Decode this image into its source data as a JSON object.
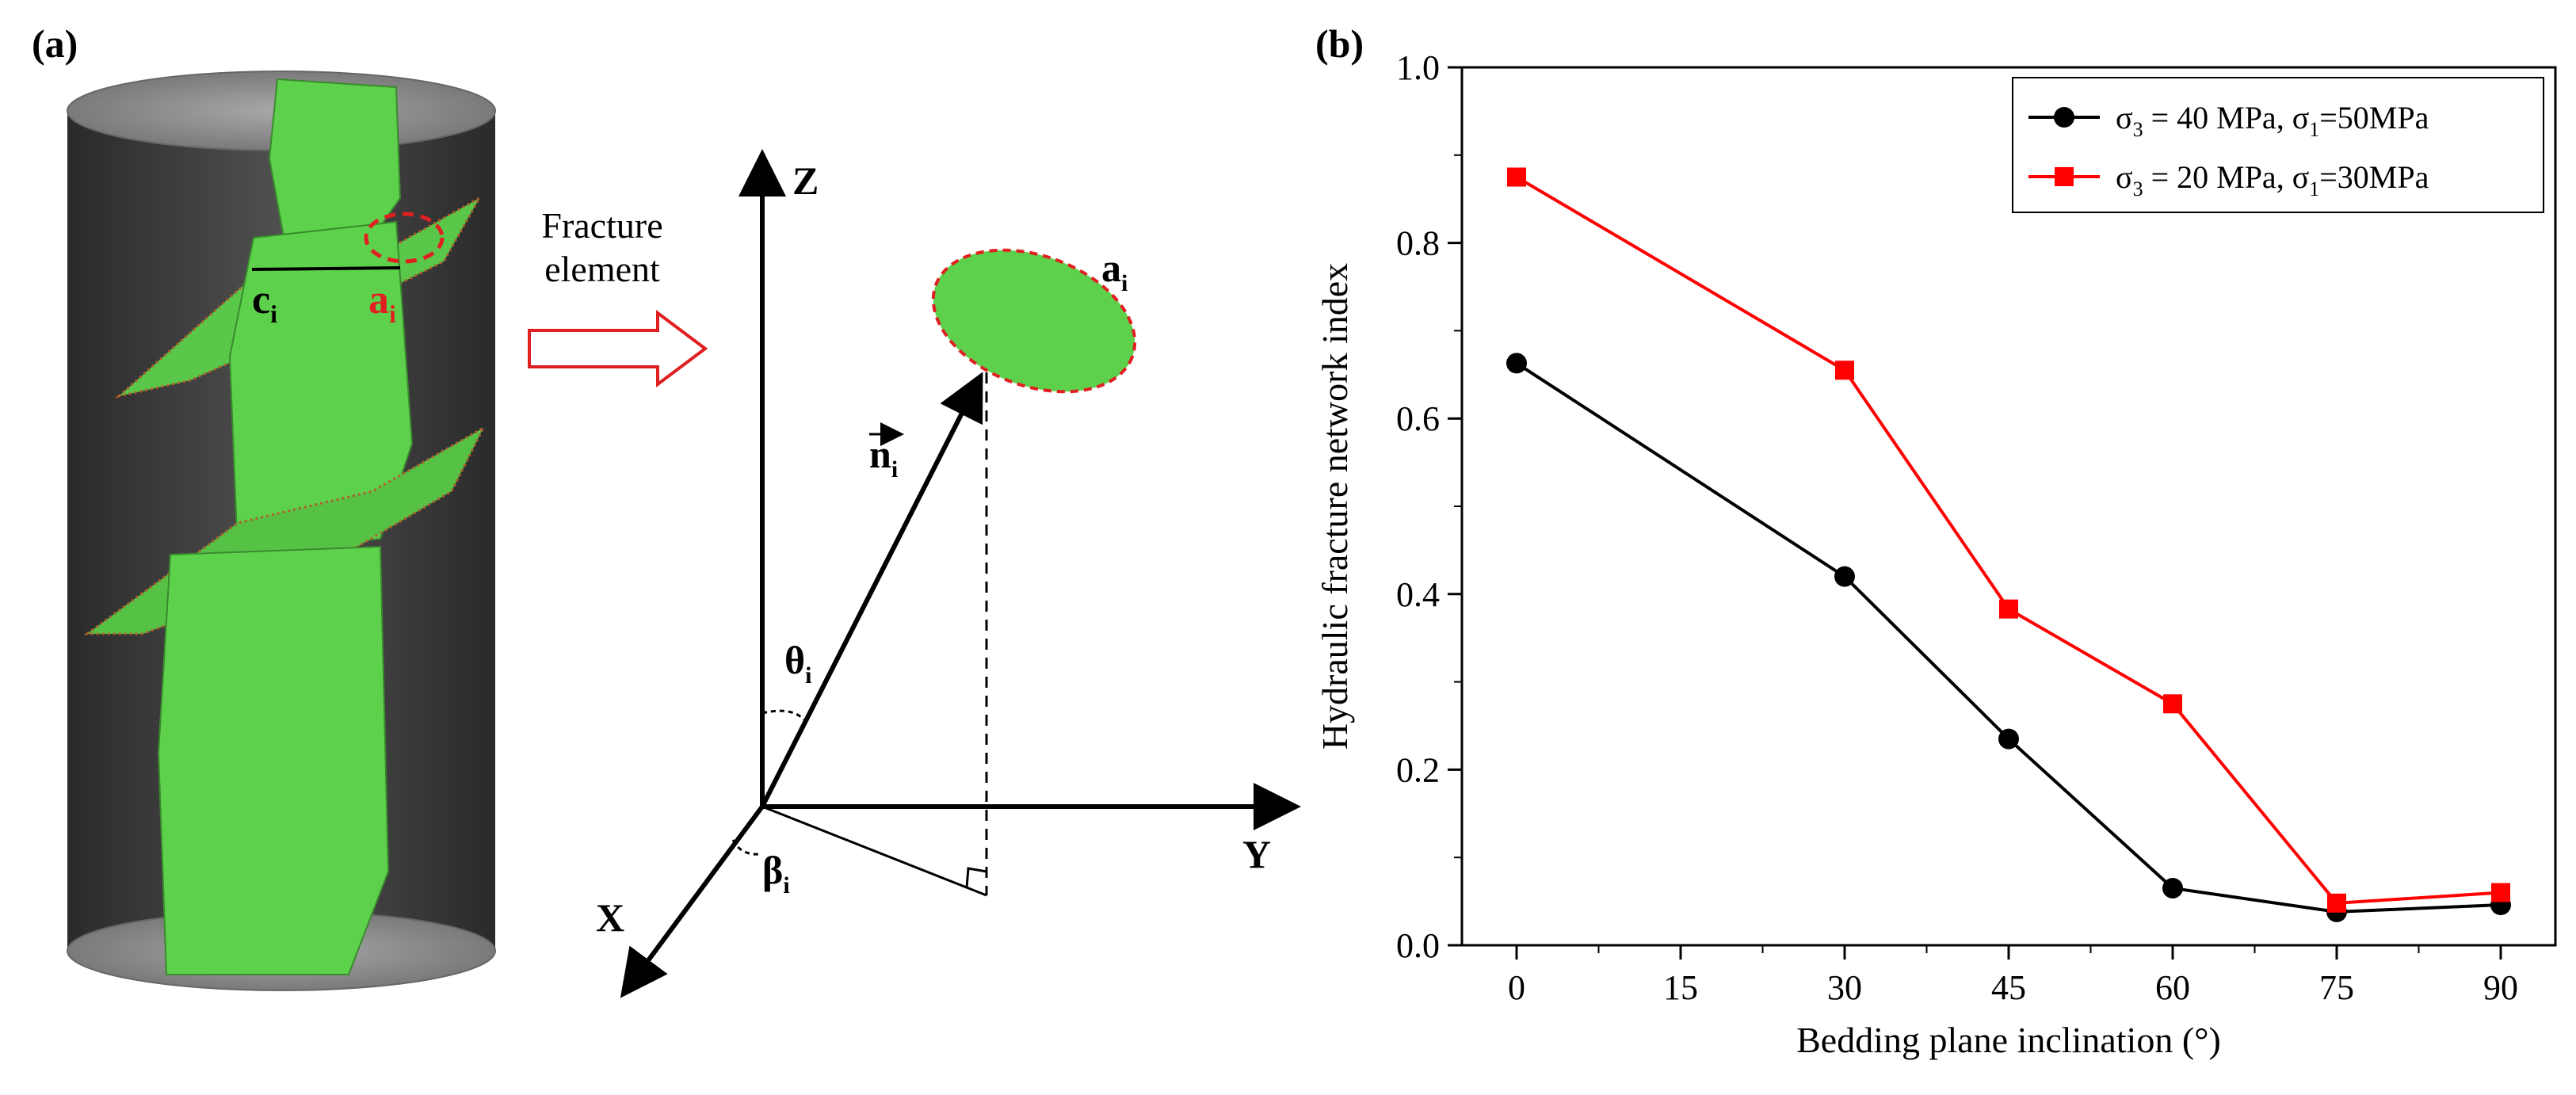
{
  "panel_a": {
    "label": "(a)",
    "arrow_text_line1": "Fracture",
    "arrow_text_line2": "element",
    "label_c": "c",
    "label_a": "a",
    "subscript_i": "i",
    "axis_z": "Z",
    "axis_y": "Y",
    "axis_x": "X",
    "normal_n": "n",
    "theta": "θ",
    "beta": "β",
    "colors": {
      "fracture": "#5ed14c",
      "cylinder": "#3c3c3c",
      "highlight": "#e02020"
    }
  },
  "panel_b": {
    "label": "(b)"
  },
  "chart_data": {
    "type": "line",
    "title": "",
    "xlabel": "Bedding plane inclination (°)",
    "ylabel": "Hydraulic fracture network index",
    "xlim": [
      -5,
      95
    ],
    "ylim": [
      0,
      1.0
    ],
    "xticks": [
      "0",
      "15",
      "30",
      "45",
      "60",
      "75",
      "90"
    ],
    "yticks": [
      "0.0",
      "0.2",
      "0.4",
      "0.6",
      "0.8",
      "1.0"
    ],
    "legend_position": "top-right",
    "grid": false,
    "series": [
      {
        "name_parts": [
          "σ",
          "3",
          " = 40 MPa, σ",
          "1",
          "=50MPa"
        ],
        "color": "#000000",
        "marker": "circle",
        "x": [
          0,
          30,
          45,
          60,
          75,
          90
        ],
        "y": [
          0.663,
          0.42,
          0.235,
          0.065,
          0.038,
          0.046
        ]
      },
      {
        "name_parts": [
          "σ",
          "3",
          " = 20 MPa, σ",
          "1",
          "=30MPa"
        ],
        "color": "#ff0000",
        "marker": "square",
        "x": [
          0,
          30,
          45,
          60,
          75,
          90
        ],
        "y": [
          0.875,
          0.655,
          0.383,
          0.275,
          0.048,
          0.06
        ]
      }
    ]
  }
}
